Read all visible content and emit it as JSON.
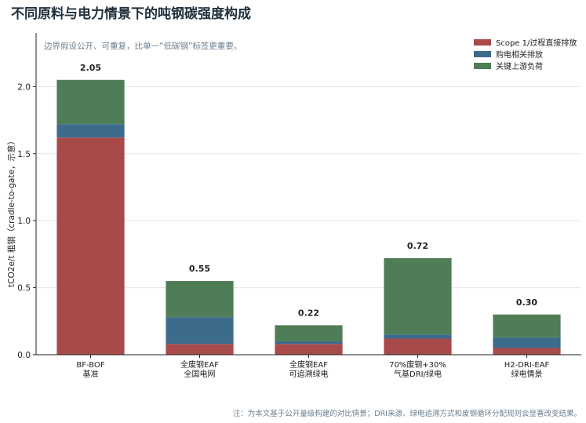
{
  "chart_data": {
    "type": "bar",
    "stacked": true,
    "title": "不同原料与电力情景下的吨钢碳强度构成",
    "subtitle": "边界假设公开、可重复，比单一“低碳钢”标签更重要。",
    "ylabel": "tCO2e/t 粗钢（cradle-to-gate，示意）",
    "xlabel": "",
    "ylim": [
      0,
      2.4
    ],
    "yticks": [
      "0.0",
      "0.5",
      "1.0",
      "1.5",
      "2.0"
    ],
    "grid": true,
    "legend_position": "top-right",
    "categories": [
      [
        "BF-BOF",
        "基准"
      ],
      [
        "全废钢EAF",
        "全国电网"
      ],
      [
        "全废钢EAF",
        "可追溯绿电"
      ],
      [
        "70%废钢+30%",
        "气基DRI/绿电"
      ],
      [
        "H2-DRI-EAF",
        "绿电情景"
      ]
    ],
    "series": [
      {
        "name": "Scope 1/过程直接排放",
        "color": "#a84a4a",
        "values": [
          1.62,
          0.08,
          0.08,
          0.12,
          0.05
        ]
      },
      {
        "name": "购电相关排放",
        "color": "#3d6b8c",
        "values": [
          0.1,
          0.2,
          0.02,
          0.03,
          0.08
        ]
      },
      {
        "name": "关键上游负荷",
        "color": "#4f7d57",
        "values": [
          0.33,
          0.27,
          0.12,
          0.57,
          0.17
        ]
      }
    ],
    "totals": [
      "2.05",
      "0.55",
      "0.22",
      "0.72",
      "0.30"
    ],
    "footnote": "注：为本文基于公开量级构建的对比情景；DRI来源、绿电追溯方式和废钢循环分配规则会显著改变结果。"
  }
}
